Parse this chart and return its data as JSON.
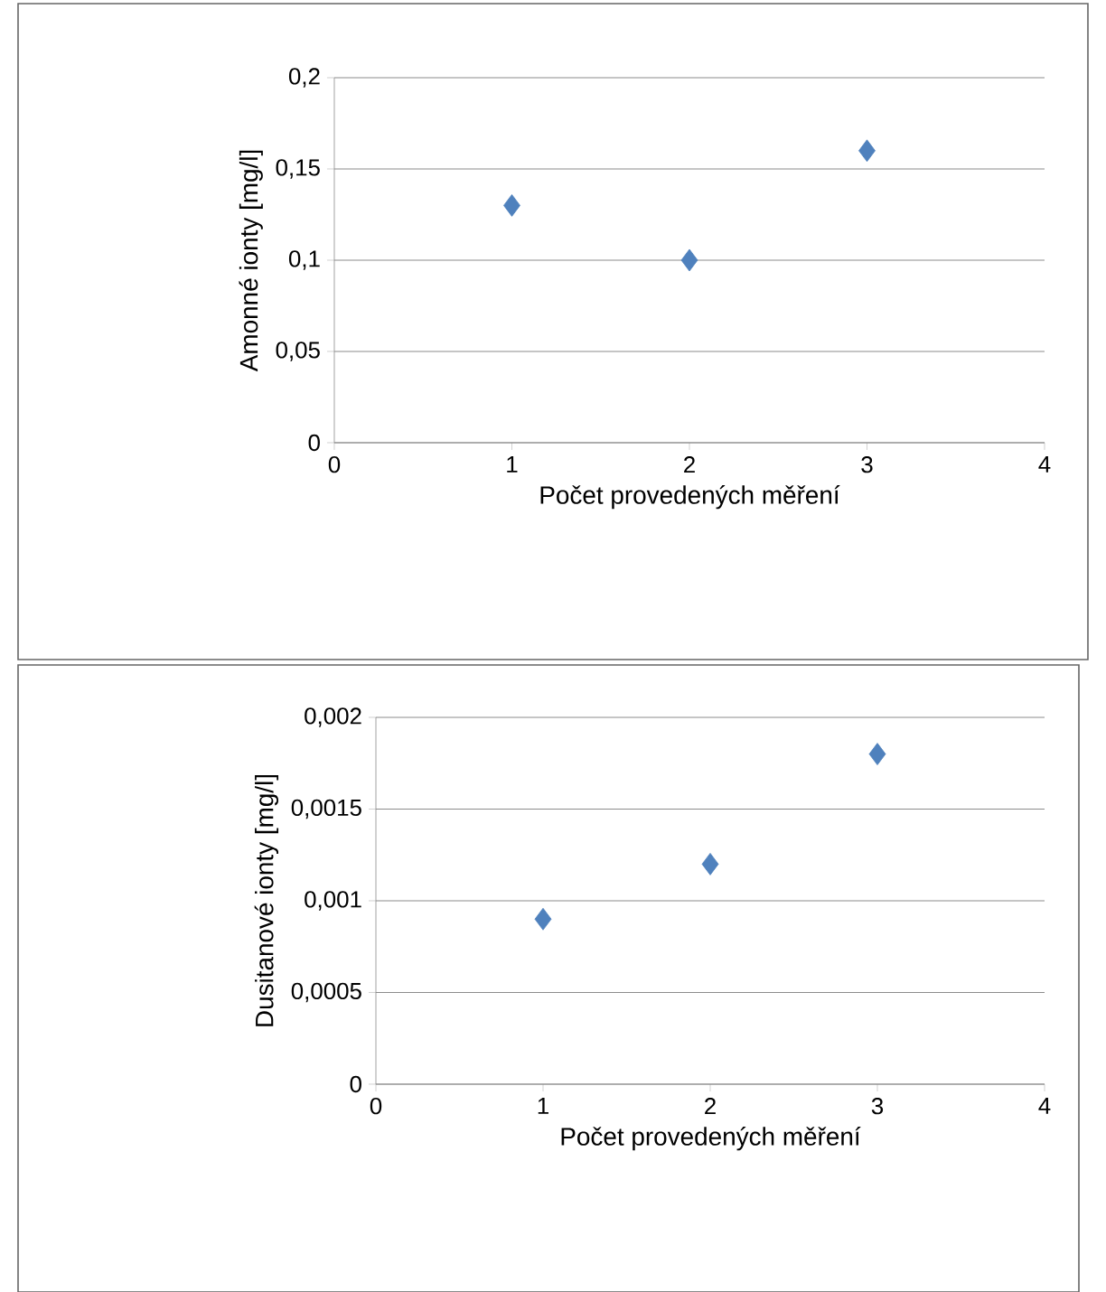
{
  "chart_data": [
    {
      "type": "scatter",
      "xlabel": "Počet provedených měření",
      "ylabel": "Amonné ionty [mg/l]",
      "x": [
        1,
        2,
        3
      ],
      "values": [
        0.13,
        0.1,
        0.16
      ],
      "color": "#4f81bd",
      "marker": "diamond",
      "xlim": [
        0,
        4
      ],
      "xticks": [
        0,
        1,
        2,
        3,
        4
      ],
      "ylim": [
        0,
        0.2
      ],
      "yticks": [
        0,
        {
          "value": 0.05,
          "label": "0,05"
        },
        {
          "value": 0.1,
          "label": "0,1"
        },
        {
          "value": 0.15,
          "label": "0,15"
        },
        {
          "value": 0.2,
          "label": "0,2"
        }
      ],
      "grid": "y"
    },
    {
      "type": "scatter",
      "xlabel": "Počet provedených měření",
      "ylabel": "Dusitanové ionty [mg/l]",
      "x": [
        1,
        2,
        3
      ],
      "values": [
        0.0009,
        0.0012,
        0.0018
      ],
      "color": "#4f81bd",
      "marker": "diamond",
      "xlim": [
        0,
        4
      ],
      "xticks": [
        0,
        1,
        2,
        3,
        4
      ],
      "ylim": [
        0,
        0.002
      ],
      "yticks": [
        0,
        {
          "value": 0.0005,
          "label": "0,0005"
        },
        {
          "value": 0.001,
          "label": "0,001"
        },
        {
          "value": 0.0015,
          "label": "0,0015"
        },
        {
          "value": 0.002,
          "label": "0,002"
        }
      ],
      "grid": "y"
    }
  ]
}
